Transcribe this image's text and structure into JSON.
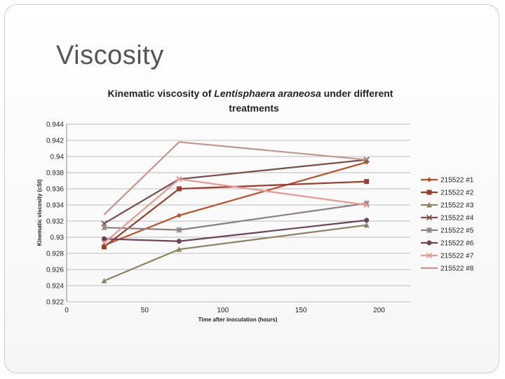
{
  "slide": {
    "title": "Viscosity"
  },
  "chart_data": {
    "type": "line",
    "title": "Kinematic viscosity of Lentisphaera araneosa under different treatments",
    "title_parts": {
      "prefix": "Kinematic viscosity of ",
      "species": "Lentisphaera araneosa",
      "suffix_line1": " under different",
      "line2": "treatments"
    },
    "xlabel": "Time after inoculation (hours)",
    "ylabel": "Kinematic viscosity (cSt)",
    "xlim": [
      0,
      220
    ],
    "ylim": [
      0.922,
      0.944
    ],
    "xticks": [
      "0",
      "50",
      "100",
      "150",
      "200"
    ],
    "yticks": [
      "0.922",
      "0.924",
      "0.926",
      "0.928",
      "0.93",
      "0.932",
      "0.934",
      "0.936",
      "0.938",
      "0.94",
      "0.942",
      "0.944"
    ],
    "grid": "horizontal",
    "legend_position": "right",
    "x": [
      24,
      72,
      192
    ],
    "series": [
      {
        "name": "215522 #1",
        "values": [
          0.929,
          0.9327,
          0.9393
        ],
        "color": "#c0502a",
        "marker": "diamond"
      },
      {
        "name": "215522 #2",
        "values": [
          0.9288,
          0.936,
          0.9369
        ],
        "color": "#9c3c2a",
        "marker": "square"
      },
      {
        "name": "215522 #3",
        "values": [
          0.9246,
          0.9285,
          0.9315
        ],
        "color": "#8c8462",
        "marker": "triangle"
      },
      {
        "name": "215522 #4",
        "values": [
          0.9317,
          0.9372,
          0.9396
        ],
        "color": "#7a4e4a",
        "marker": "x"
      },
      {
        "name": "215522 #5",
        "values": [
          0.9312,
          0.9309,
          0.9342
        ],
        "color": "#8a8080",
        "marker": "star"
      },
      {
        "name": "215522 #6",
        "values": [
          0.9298,
          0.9295,
          0.9321
        ],
        "color": "#6e4458",
        "marker": "circle"
      },
      {
        "name": "215522 #7",
        "values": [
          0.9293,
          0.9372,
          0.934
        ],
        "color": "#e89a92",
        "marker": "x"
      },
      {
        "name": "215522 #8",
        "values": [
          0.9328,
          0.9418,
          0.9396
        ],
        "color": "#c4958e",
        "marker": "none"
      }
    ]
  }
}
